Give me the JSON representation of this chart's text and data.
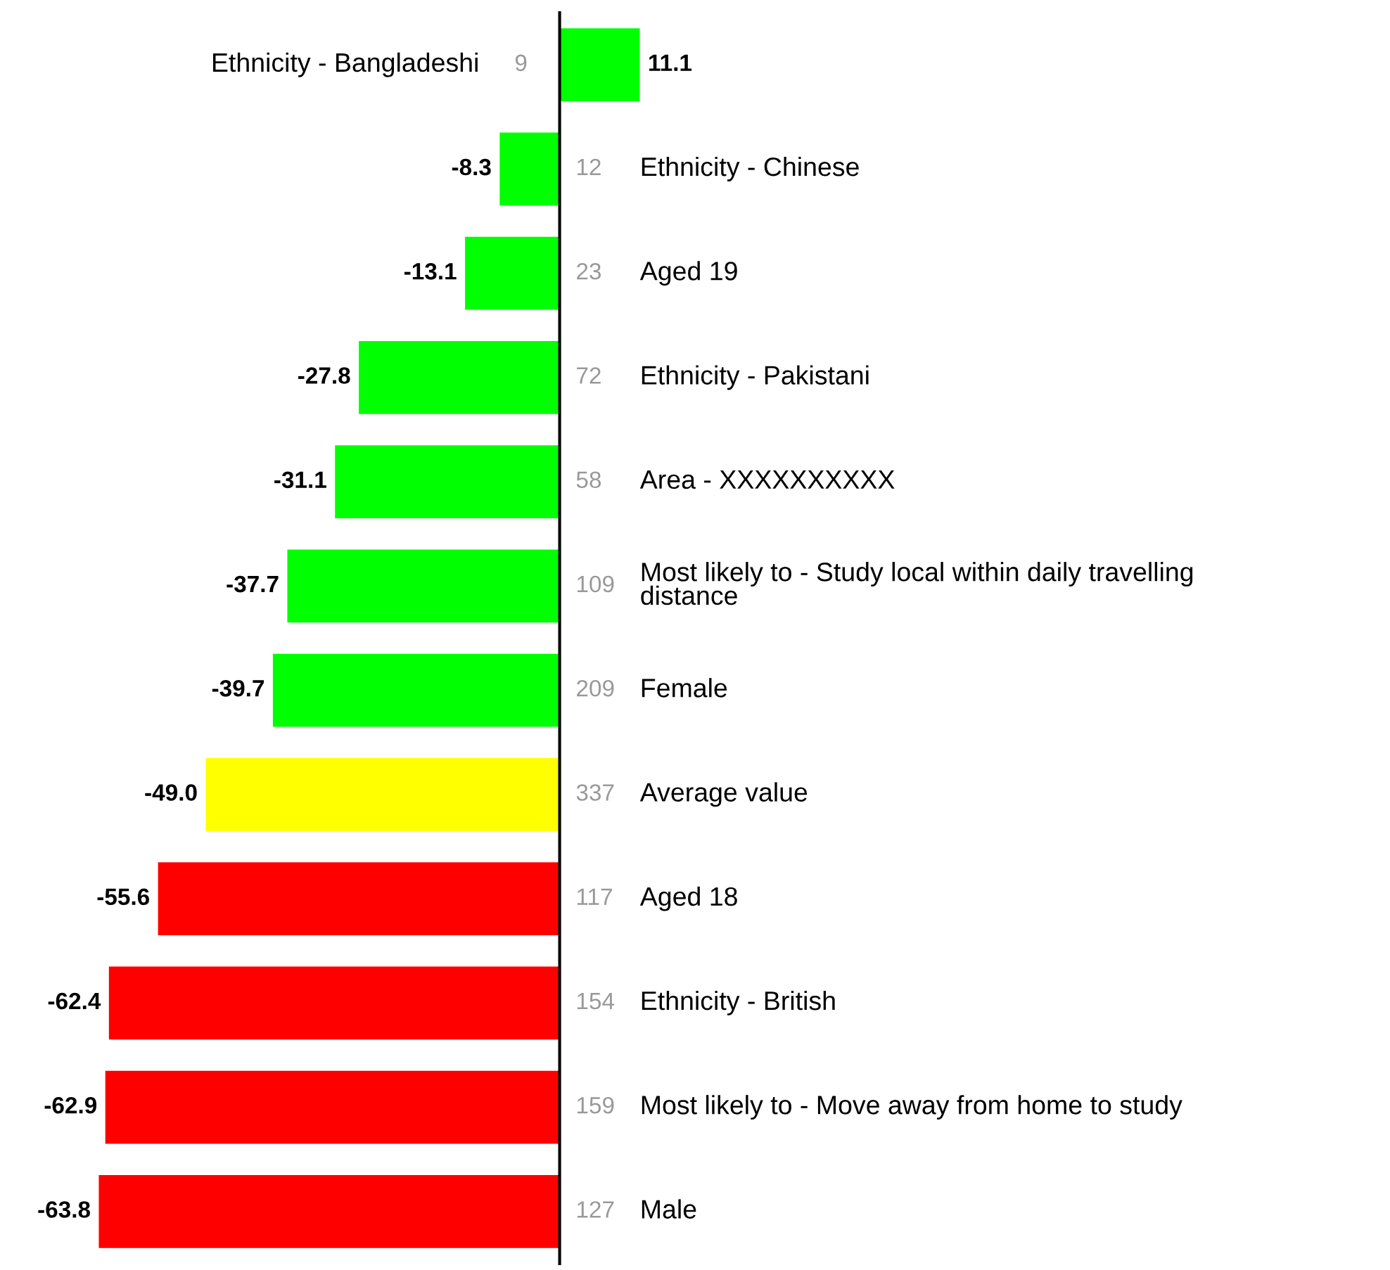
{
  "chart_data": {
    "type": "bar",
    "orientation": "horizontal",
    "categories": [
      "Ethnicity - Bangladeshi",
      "Ethnicity - Chinese",
      "Aged 19",
      "Ethnicity - Pakistani",
      "Area - XXXXXXXXXX",
      "Most likely to - Study local within daily travelling\ndistance",
      "Female",
      "Average value",
      "Aged 18",
      "Ethnicity - British",
      "Most likely to - Move away from home to study",
      "Male"
    ],
    "values": [
      11.1,
      -8.3,
      -13.1,
      -27.8,
      -31.1,
      -37.7,
      -39.7,
      -49.0,
      -55.6,
      -62.4,
      -62.9,
      -63.8
    ],
    "colors": [
      "#00ff00",
      "#00ff00",
      "#00ff00",
      "#00ff00",
      "#00ff00",
      "#00ff00",
      "#00ff00",
      "#ffff00",
      "#ff0000",
      "#ff0000",
      "#ff0000",
      "#ff0000"
    ],
    "annotations": [
      "9",
      "12",
      "23",
      "72",
      "58",
      "109",
      "209",
      "337",
      "117",
      "154",
      "159",
      "127"
    ],
    "value_labels": [
      "11.1",
      "-8.3",
      "-13.1",
      "-27.8",
      "-31.1",
      "-37.7",
      "-39.7",
      "-49.0",
      "-55.6",
      "-62.4",
      "-62.9",
      "-63.8"
    ]
  }
}
